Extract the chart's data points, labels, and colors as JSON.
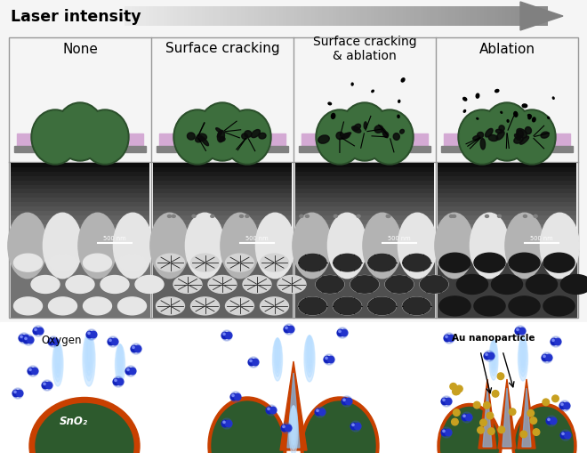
{
  "title_arrow": "Laser intensity",
  "column_labels": [
    "None",
    "Surface cracking",
    "Surface cracking\n& ablation",
    "Ablation"
  ],
  "bg_color": "#f0f0f0",
  "figure_width": 6.6,
  "figure_height": 5.1,
  "dpi": 100,
  "oxygen_label": "Oxygen",
  "au_label": "Au nanoparticle",
  "sno2_label": "SnO₂",
  "dome_color": "#3d6e3d",
  "dome_dark": "#2a4e2a",
  "dome_border": "#c84000",
  "substrate_color": "#d8a8d8",
  "substrate_base": "#888888",
  "oxygen_color": "#1a1aee",
  "oxygen_glow": "#4466ff",
  "gold_color": "#c8a020",
  "flame_color": "#b8deff",
  "crack_orange": "#c84000",
  "crack_inner": "#9abbdd",
  "border_color": "#aaaaaa",
  "sem_bg_dark": "#0a0a0a",
  "sem_bg_mid": "#303030"
}
